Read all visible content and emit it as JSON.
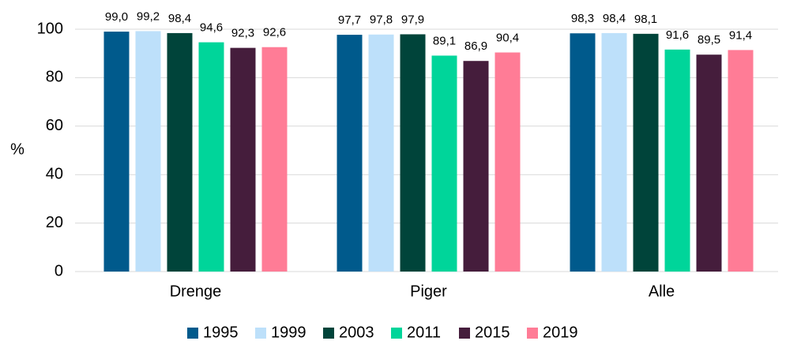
{
  "chart_data": {
    "type": "bar",
    "categories": [
      "Drenge",
      "Piger",
      "Alle"
    ],
    "y_label": "%",
    "ylim": [
      0,
      100
    ],
    "yticks": [
      0,
      20,
      40,
      60,
      80,
      100
    ],
    "grid": true,
    "legend": "bottom",
    "series": [
      {
        "name": "1995",
        "color": "#005a8c",
        "values": [
          99.0,
          97.7,
          98.3
        ],
        "value_labels": [
          "99,0",
          "97,7",
          "98,3"
        ]
      },
      {
        "name": "1999",
        "color": "#bde0fa",
        "values": [
          99.2,
          97.8,
          98.4
        ],
        "value_labels": [
          "99,2",
          "97,8",
          "98,4"
        ]
      },
      {
        "name": "2003",
        "color": "#00443a",
        "values": [
          98.4,
          97.9,
          98.1
        ],
        "value_labels": [
          "98,4",
          "97,9",
          "98,1"
        ]
      },
      {
        "name": "2011",
        "color": "#00d59a",
        "values": [
          94.6,
          89.1,
          91.6
        ],
        "value_labels": [
          "94,6",
          "89,1",
          "91,6"
        ]
      },
      {
        "name": "2015",
        "color": "#451d3c",
        "values": [
          92.3,
          86.9,
          89.5
        ],
        "value_labels": [
          "92,3",
          "86,9",
          "89,5"
        ]
      },
      {
        "name": "2019",
        "color": "#ff7c96",
        "values": [
          92.6,
          90.4,
          91.4
        ],
        "value_labels": [
          "92,6",
          "90,4",
          "91,4"
        ]
      }
    ]
  }
}
